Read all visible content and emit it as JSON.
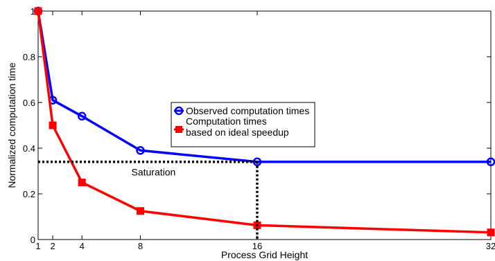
{
  "chart_data": {
    "type": "line",
    "xlabel": "Process Grid Height",
    "ylabel": "Normalized computation time",
    "xlim": [
      1,
      32
    ],
    "ylim": [
      0,
      1
    ],
    "xticks": [
      1,
      2,
      4,
      8,
      16,
      32
    ],
    "xtick_labels": [
      "1",
      "2",
      "4",
      "8",
      "16",
      "32"
    ],
    "yticks": [
      0,
      0.2,
      0.4,
      0.6,
      0.8,
      1
    ],
    "ytick_labels": [
      "0",
      "0.2",
      "0.4",
      "0.6",
      "0.8",
      "1"
    ],
    "grid": false,
    "legend_position": "center-right",
    "series": [
      {
        "name": "Observed computation times",
        "color": "#0000ff",
        "marker": "circle",
        "x": [
          1,
          2,
          4,
          8,
          16,
          32
        ],
        "y": [
          1.0,
          0.61,
          0.54,
          0.39,
          0.34,
          0.34
        ]
      },
      {
        "name": "Computation times based on ideal speedup",
        "color": "#ff0000",
        "marker": "square",
        "x": [
          1,
          2,
          4,
          8,
          16,
          32
        ],
        "y": [
          1.0,
          0.5,
          0.25,
          0.125,
          0.0625,
          0.03125
        ]
      }
    ],
    "legend_lines": [
      [
        "Observed computation times"
      ],
      [
        "Computation times",
        "based on ideal speedup"
      ]
    ],
    "annotations": [
      {
        "type": "hline",
        "y": 0.34,
        "style": "dotted",
        "color": "#000000"
      },
      {
        "type": "vline",
        "x": 16,
        "style": "dotted",
        "color": "#000000"
      },
      {
        "type": "text",
        "text": "Saturation",
        "x": 8.9,
        "y": 0.295
      }
    ]
  }
}
